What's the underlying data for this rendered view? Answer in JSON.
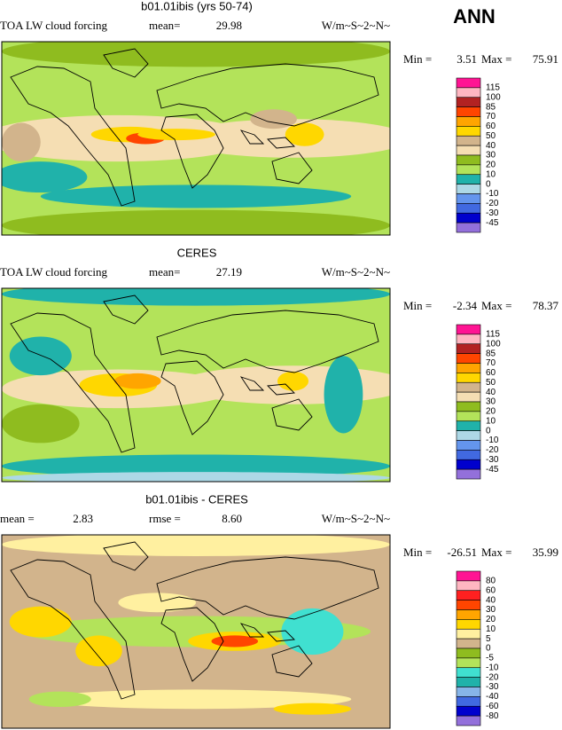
{
  "header": {
    "season": "ANN"
  },
  "panels": [
    {
      "title": "b01.01ibis (yrs 50-74)",
      "left_text": "TOA LW cloud forcing",
      "stats": [
        [
          "mean=",
          29.98
        ]
      ],
      "units": "W/m~S~2~N~",
      "min_label": "Min =",
      "min": 3.51,
      "max_label": "Max =",
      "max": 75.91,
      "colorbar": {
        "levels": [
          115,
          100,
          85,
          70,
          60,
          50,
          40,
          30,
          20,
          10,
          0,
          -10,
          -20,
          -30,
          -45
        ],
        "colors": [
          "#ff1493",
          "#ffb6c1",
          "#b22222",
          "#ff4500",
          "#ffa500",
          "#ffd700",
          "#d2b48c",
          "#f5deb3",
          "#8fbc1f",
          "#b3e35a",
          "#20b2aa",
          "#add8e6",
          "#6495ed",
          "#4169e1",
          "#0000cd",
          "#9370db"
        ]
      }
    },
    {
      "title": "CERES",
      "left_text": "TOA LW cloud forcing",
      "stats": [
        [
          "mean=",
          27.19
        ]
      ],
      "units": "W/m~S~2~N~",
      "min_label": "Min =",
      "min": -2.34,
      "max_label": "Max =",
      "max": 78.37,
      "colorbar": {
        "levels": [
          115,
          100,
          85,
          70,
          60,
          50,
          40,
          30,
          20,
          10,
          0,
          -10,
          -20,
          -30,
          -45
        ],
        "colors": [
          "#ff1493",
          "#ffb6c1",
          "#b22222",
          "#ff4500",
          "#ffa500",
          "#ffd700",
          "#d2b48c",
          "#f5deb3",
          "#8fbc1f",
          "#b3e35a",
          "#20b2aa",
          "#add8e6",
          "#6495ed",
          "#4169e1",
          "#0000cd",
          "#9370db"
        ]
      }
    },
    {
      "title": "b01.01ibis - CERES",
      "left_text": null,
      "stats": [
        [
          "mean =",
          2.83
        ],
        [
          "rmse =",
          "8.60"
        ]
      ],
      "units": "W/m~S~2~N~",
      "min_label": "Min =",
      "min": -26.51,
      "max_label": "Max =",
      "max": 35.99,
      "colorbar": {
        "levels": [
          80,
          60,
          40,
          30,
          20,
          10,
          5,
          0,
          -5,
          -10,
          -20,
          -30,
          -40,
          -60,
          -80
        ],
        "colors": [
          "#ff1493",
          "#ffb6c1",
          "#ff2020",
          "#ff4500",
          "#ffa500",
          "#ffd700",
          "#fff0a0",
          "#d2b48c",
          "#8fbc1f",
          "#b3e35a",
          "#40e0d0",
          "#20b2aa",
          "#87b5e8",
          "#4169e1",
          "#0000cd",
          "#9370db"
        ]
      }
    }
  ]
}
